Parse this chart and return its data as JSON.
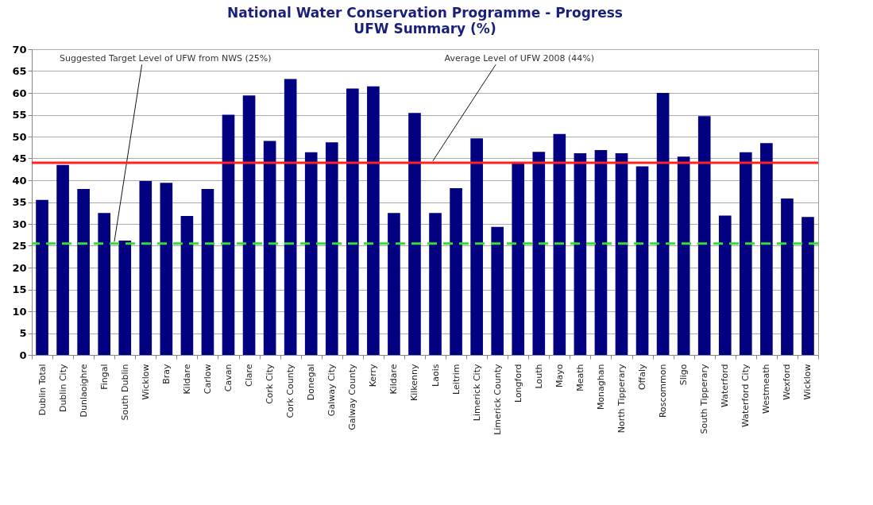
{
  "chart_data": {
    "type": "bar",
    "title": "National Water Conservation Programme - Progress",
    "subtitle": "UFW Summary (%)",
    "categories": [
      "Dublin Total",
      "Dublin City",
      "Dunlaoighre",
      "Fingal",
      "South Dublin",
      "Wicklow",
      "Bray",
      "Kildare",
      "Carlow",
      "Cavan",
      "Clare",
      "Cork City",
      "Cork County",
      "Donegal",
      "Galway City",
      "Galway County",
      "Kerry",
      "Kildare",
      "Kilkenny",
      "Laois",
      "Leitrim",
      "Limerick City",
      "Limerick County",
      "Longford",
      "Louth",
      "Mayo",
      "Meath",
      "Monaghan",
      "North Tipperary",
      "Offaly",
      "Roscommon",
      "Sligo",
      "South Tipperary",
      "Waterford",
      "Waterford City",
      "Westmeath",
      "Wexford",
      "Wicklow"
    ],
    "values": [
      35.5,
      43.5,
      38,
      32.5,
      26.2,
      39.8,
      39.4,
      31.8,
      38,
      55,
      59.4,
      49,
      63.2,
      46.4,
      48.7,
      61,
      61.5,
      32.5,
      55.4,
      32.5,
      38.2,
      49.6,
      29.3,
      43.8,
      46.5,
      50.6,
      46.2,
      46.9,
      46.2,
      43.2,
      60,
      45.4,
      54.7,
      31.9,
      46.4,
      48.5,
      35.8,
      31.6
    ],
    "color": "#000080",
    "ylim": [
      0,
      70
    ],
    "yticks": [
      0,
      5,
      10,
      15,
      20,
      25,
      30,
      35,
      40,
      45,
      50,
      55,
      60,
      65,
      70
    ],
    "grid": "y",
    "ref_lines": [
      {
        "axis": "y",
        "value": 25.5,
        "label": "Suggested Target Level of UFW from NWS (25%)",
        "color": "#33dd33",
        "line_style": "dashed"
      },
      {
        "axis": "y",
        "value": 44,
        "label": "Average Level of UFW 2008 (44%)",
        "color": "#ff2020",
        "line_style": "solid"
      }
    ]
  }
}
